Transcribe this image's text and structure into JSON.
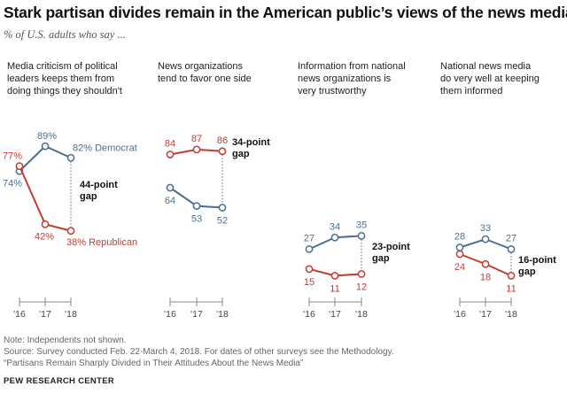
{
  "title": "Stark partisan divides remain in the American public’s views of the news media",
  "subtitle": "% of U.S. adults who say ...",
  "colors": {
    "democrat": "#4a6f92",
    "republican": "#c43c32",
    "axis": "#888888"
  },
  "chart_data": [
    {
      "type": "line",
      "label": "Media criticism of political leaders keeps them from doing things they shouldn't",
      "label_lines": [
        "Media criticism of political",
        "leaders keeps them from",
        "doing things they shouldn't"
      ],
      "x": [
        "'16",
        "'17",
        "'18"
      ],
      "series": [
        {
          "name": "Democrat",
          "party": "democrat",
          "values": [
            74,
            89,
            82
          ],
          "value_labels": [
            "74%",
            "89%",
            "82% Democrat"
          ]
        },
        {
          "name": "Republican",
          "party": "republican",
          "values": [
            77,
            42,
            38
          ],
          "value_labels": [
            "77%",
            "42%",
            "38% Republican"
          ]
        }
      ],
      "gap_lines": [
        "44-point",
        "gap"
      ]
    },
    {
      "type": "line",
      "label": "News organizations tend to favor one side",
      "label_lines": [
        "News organizations",
        "tend to favor one side"
      ],
      "x": [
        "'16",
        "'17",
        "'18"
      ],
      "series": [
        {
          "party": "democrat",
          "values": [
            64,
            53,
            52
          ],
          "value_labels": [
            "64",
            "53",
            "52"
          ]
        },
        {
          "party": "republican",
          "values": [
            84,
            87,
            86
          ],
          "value_labels": [
            "84",
            "87",
            "86"
          ]
        }
      ],
      "gap_lines": [
        "34-point",
        "gap"
      ]
    },
    {
      "type": "line",
      "label": "Information from national news organizations is very trustworthy",
      "label_lines": [
        "Information from national",
        "news organizations is",
        "very trustworthy"
      ],
      "x": [
        "'16",
        "'17",
        "'18"
      ],
      "series": [
        {
          "party": "democrat",
          "values": [
            27,
            34,
            35
          ],
          "value_labels": [
            "27",
            "34",
            "35"
          ]
        },
        {
          "party": "republican",
          "values": [
            15,
            11,
            12
          ],
          "value_labels": [
            "15",
            "11",
            "12"
          ]
        }
      ],
      "gap_lines": [
        "23-point",
        "gap"
      ]
    },
    {
      "type": "line",
      "label": "National news media do very well at keeping them informed",
      "label_lines": [
        "National news media",
        "do very well at keeping",
        "them informed"
      ],
      "x": [
        "'16",
        "'17",
        "'18"
      ],
      "series": [
        {
          "party": "democrat",
          "values": [
            28,
            33,
            27
          ],
          "value_labels": [
            "28",
            "33",
            "27"
          ]
        },
        {
          "party": "republican",
          "values": [
            24,
            18,
            11
          ],
          "value_labels": [
            "24",
            "18",
            "11"
          ]
        }
      ],
      "gap_lines": [
        "16-point",
        "gap"
      ]
    }
  ],
  "notes": [
    "Note: Independents not shown.",
    "Source: Survey conducted Feb. 22-March 4, 2018. For dates of other surveys see the Methodology.",
    "“Partisans Remain Sharply Divided in Their Attitudes About the News Media”"
  ],
  "brand": "PEW RESEARCH CENTER"
}
